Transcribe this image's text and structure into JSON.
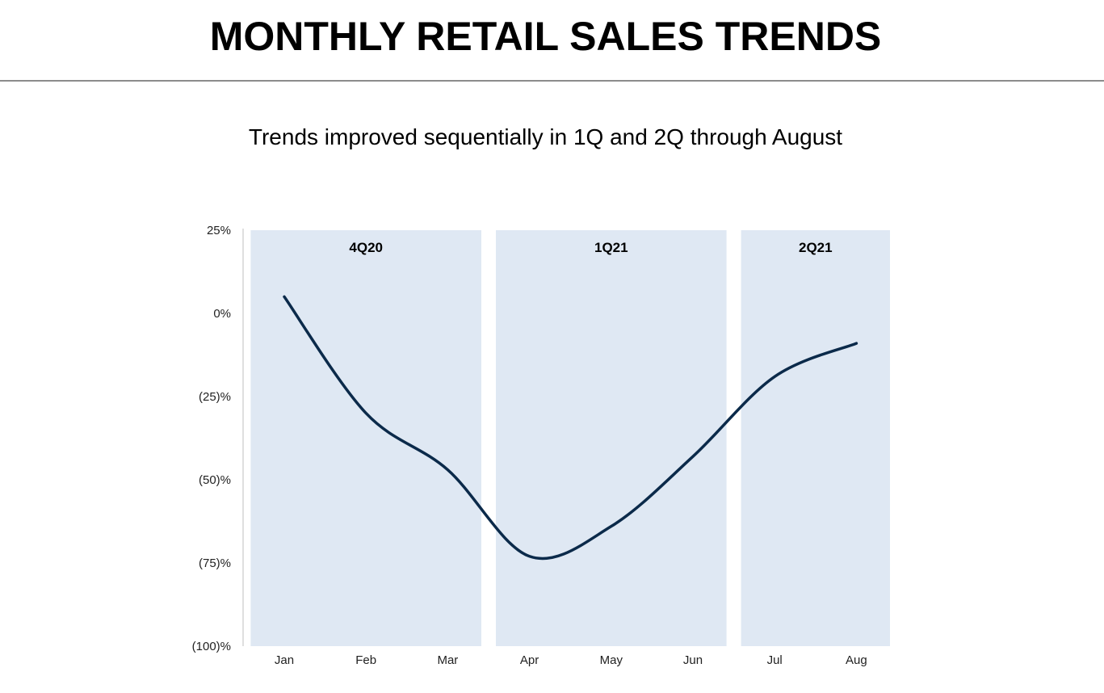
{
  "header": {
    "title": "MONTHLY RETAIL SALES TRENDS",
    "subtitle": "Trends improved sequentially in 1Q and 2Q through August"
  },
  "chart_data": {
    "type": "line",
    "title": "",
    "xlabel": "",
    "ylabel": "",
    "categories": [
      "Jan",
      "Feb",
      "Mar",
      "Apr",
      "May",
      "Jun",
      "Jul",
      "Aug"
    ],
    "series": [
      {
        "values": [
          5,
          -30,
          -47,
          -73,
          -64,
          -43,
          -19,
          -9
        ],
        "color": "#0b2a4a"
      }
    ],
    "ylim": [
      -100,
      25
    ],
    "yticks": [
      25,
      0,
      -25,
      -50,
      -75,
      -100
    ],
    "ytick_labels": [
      "25%",
      "0%",
      "(25)%",
      "(50)%",
      "(75)%",
      "(100)%"
    ],
    "quarter_bands": [
      {
        "label": "4Q20",
        "start": "Jan",
        "end": "Mar"
      },
      {
        "label": "1Q21",
        "start": "Apr",
        "end": "Jun"
      },
      {
        "label": "2Q21",
        "start": "Jul",
        "end": "Aug"
      }
    ],
    "band_color": "#dfe8f3",
    "axis_color": "#bfbfbf",
    "grid": false,
    "legend": "none"
  }
}
